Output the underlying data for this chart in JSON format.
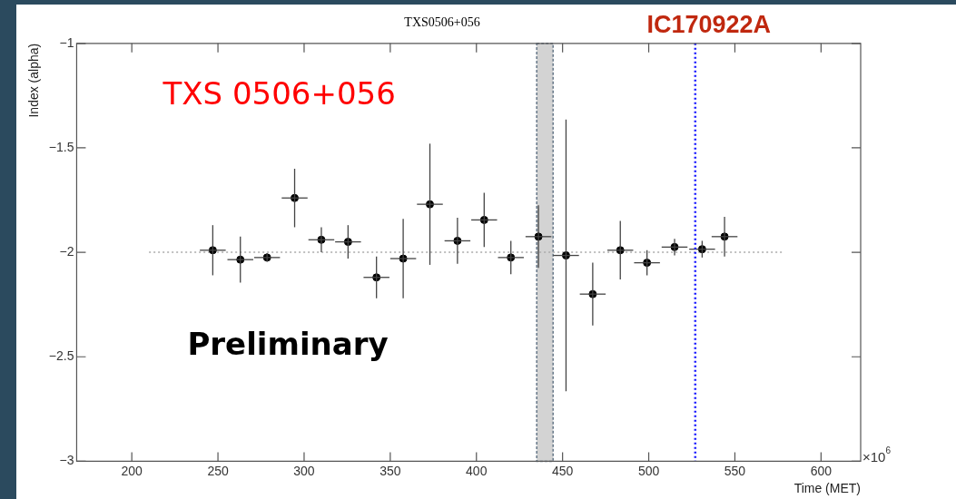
{
  "chart_data": {
    "type": "scatter",
    "title": "TXS0506+056",
    "xlabel": "Time (MET)",
    "ylabel": "Index (alpha)",
    "annotations": [
      "TXS 0506+056",
      "Preliminary",
      "×10$^{6}$"
    ],
    "xlim": [
      168,
      623
    ],
    "xticks": [
      200,
      250,
      300,
      350,
      400,
      450,
      500,
      550,
      600
    ],
    "ylim": [
      -3,
      -1
    ],
    "yticks": [
      {
        "value": -3,
        "label": "−3"
      },
      {
        "value": -2.5,
        "label": "−2.5"
      },
      {
        "value": -2,
        "label": "−2"
      },
      {
        "value": -1.5,
        "label": "−1.5"
      },
      {
        "value": -1,
        "label": "−1"
      }
    ],
    "grid": false,
    "legend": false,
    "marker": "circle",
    "series": [
      {
        "color": "#000000",
        "x": [
          247,
          263,
          278.5,
          294.5,
          310,
          325.5,
          342,
          357.5,
          373,
          389,
          404.5,
          420,
          436,
          452,
          467.5,
          483.5,
          499,
          515,
          531,
          544
        ],
        "values": [
          -1.99,
          -2.035,
          -2.025,
          -1.74,
          -1.94,
          -1.95,
          -2.12,
          -2.03,
          -1.77,
          -1.945,
          -1.845,
          -2.025,
          -1.925,
          -2.015,
          -2.2,
          -1.99,
          -2.05,
          -1.975,
          -1.985,
          -1.925
        ],
        "errors": [
          0.12,
          0.11,
          0.02,
          0.14,
          0.06,
          0.08,
          0.1,
          0.19,
          0.29,
          0.11,
          0.13,
          0.08,
          0.15,
          0.65,
          0.15,
          0.14,
          0.06,
          0.04,
          0.04,
          0.095
        ],
        "xerrors": [
          7.5,
          7.5,
          7.5,
          7.5,
          7.5,
          7.5,
          7.5,
          7.5,
          7.5,
          7.5,
          7.5,
          7.5,
          7.5,
          7.5,
          7.5,
          7.5,
          7.5,
          7.5,
          7.5,
          7.5
        ]
      },
      {
        "type": "line",
        "color": "#aaaaaa",
        "line_style": "dotted",
        "marker": "none",
        "x": [
          210,
          578
        ],
        "values": [
          -2,
          -2
        ]
      }
    ],
    "ref_lines": [
      {
        "axis": "x",
        "value": 527,
        "label": "IC170922A",
        "color": "#1a1aff",
        "line_style": "dotted"
      }
    ],
    "bands": [
      {
        "axis": "x",
        "from": 435,
        "to": 444.5,
        "color": "#d3d3d3"
      }
    ]
  }
}
